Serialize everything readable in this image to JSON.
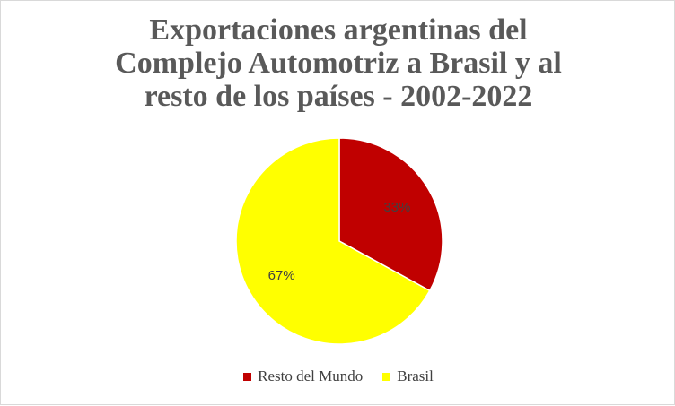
{
  "chart_data": {
    "type": "pie",
    "title_lines": [
      "Exportaciones argentinas del",
      "Complejo Automotriz a Brasil y al",
      "resto de los países - 2002-2022"
    ],
    "slices": [
      {
        "name": "Resto del Mundo",
        "value": 33,
        "label": "33%",
        "color": "#c00000"
      },
      {
        "name": "Brasil",
        "value": 67,
        "label": "67%",
        "color": "#ffff00"
      }
    ],
    "legend_position": "bottom"
  }
}
